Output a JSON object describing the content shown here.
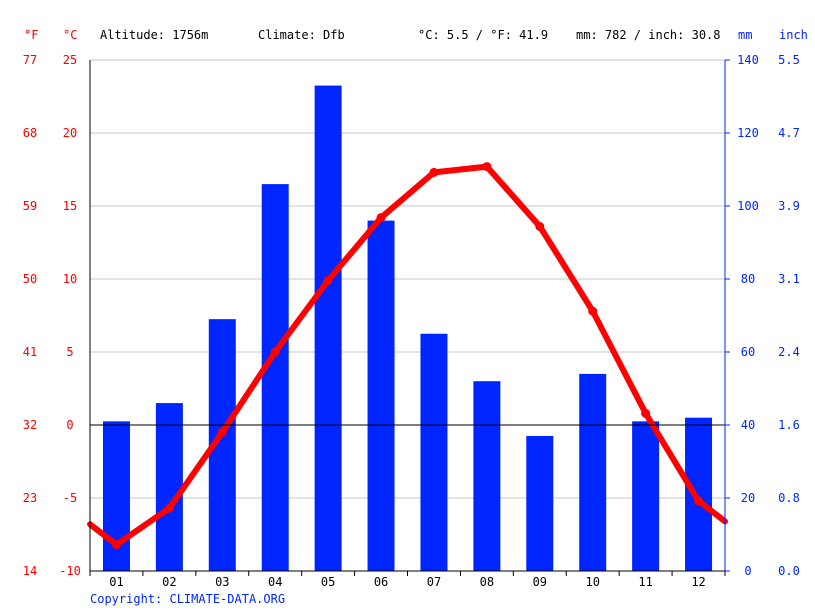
{
  "header": {
    "unit_f": "°F",
    "unit_c": "°C",
    "altitude": "Altitude: 1756m",
    "climate": "Climate: Dfb",
    "avg_temp": "°C: 5.5 / °F: 41.9",
    "precip_total": "mm: 782 / inch: 30.8",
    "unit_mm": "mm",
    "unit_inch": "inch"
  },
  "copyright": "Copyright: CLIMATE-DATA.ORG",
  "colors": {
    "temperature": "#ff0000",
    "precipitation": "#0026ff"
  },
  "chart_data": {
    "type": "bar",
    "categories": [
      "01",
      "02",
      "03",
      "04",
      "05",
      "06",
      "07",
      "08",
      "09",
      "10",
      "11",
      "12"
    ],
    "series": [
      {
        "type": "bar",
        "axis": "mm",
        "values": [
          41,
          46,
          69,
          106,
          133,
          96,
          65,
          52,
          37,
          54,
          41,
          42
        ]
      },
      {
        "type": "line",
        "axis": "°C",
        "values": [
          -8.2,
          -5.7,
          -0.5,
          5.0,
          9.9,
          14.2,
          17.3,
          17.7,
          13.6,
          7.8,
          0.8,
          -5.2
        ]
      }
    ],
    "left_axis_c": {
      "ticks": [
        25,
        20,
        15,
        10,
        5,
        0,
        -5,
        -10
      ],
      "range": [
        -10,
        25
      ]
    },
    "left_axis_f": {
      "ticks": [
        "77",
        "68",
        "59",
        "50",
        "41",
        "32",
        "23",
        "14"
      ]
    },
    "right_axis_mm": {
      "ticks": [
        "140",
        "120",
        "100",
        "80",
        "60",
        "40",
        "20",
        "0"
      ],
      "range": [
        0,
        140
      ]
    },
    "right_axis_inch": {
      "ticks": [
        "5.5",
        "4.7",
        "3.9",
        "3.1",
        "2.4",
        "1.6",
        "0.8",
        "0.0"
      ]
    },
    "line_edge_values": {
      "left": -6.8,
      "right": -6.6
    },
    "grid": true
  }
}
